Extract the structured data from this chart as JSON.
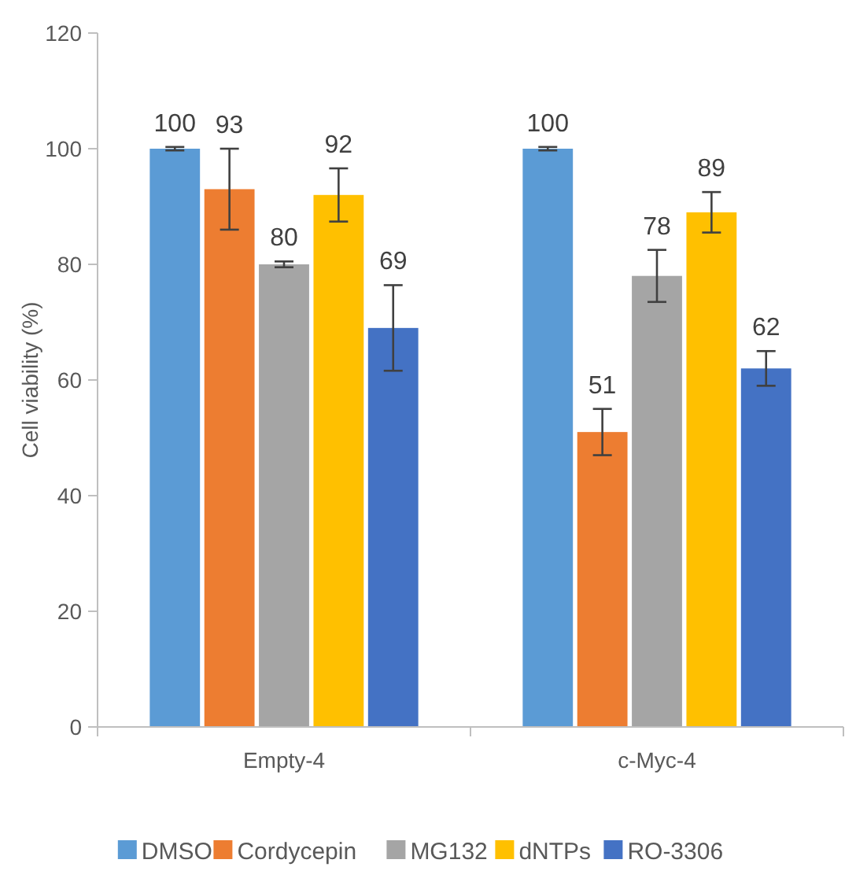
{
  "chart_data": {
    "type": "bar",
    "ylabel": "Cell viability (%)",
    "categories": [
      "Empty-4",
      "c-Myc-4"
    ],
    "series": [
      {
        "name": "DMSO",
        "color": "#5b9bd5",
        "values": [
          100,
          100
        ],
        "errors": [
          0.3,
          0.3
        ]
      },
      {
        "name": "Cordycepin",
        "color": "#ed7d31",
        "values": [
          93,
          51
        ],
        "errors": [
          7,
          4
        ]
      },
      {
        "name": "MG132",
        "color": "#a5a5a5",
        "values": [
          80,
          78
        ],
        "errors": [
          0.5,
          4.5
        ]
      },
      {
        "name": "dNTPs",
        "color": "#ffc000",
        "values": [
          92,
          89
        ],
        "errors": [
          4.6,
          3.5
        ]
      },
      {
        "name": "RO-3306",
        "color": "#4472c4",
        "values": [
          69,
          62
        ],
        "errors": [
          7.4,
          3
        ]
      }
    ],
    "ylim": [
      0,
      120
    ],
    "yticks": [
      0,
      20,
      40,
      60,
      80,
      100,
      120
    ],
    "data_labels": true,
    "grid": false,
    "legend": "bottom"
  }
}
